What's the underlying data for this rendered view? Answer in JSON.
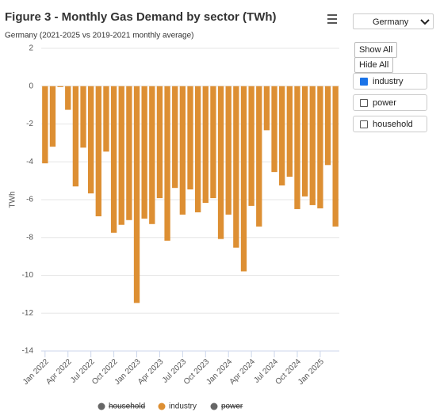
{
  "chart_data": {
    "type": "bar",
    "title": "Figure 3 - Monthly Gas Demand by sector (TWh)",
    "subtitle": "Germany (2021-2025 vs 2019-2021 monthly average)",
    "y_label": "TWh",
    "categories": [
      "Jan 2022",
      null,
      null,
      "Apr 2022",
      null,
      null,
      "Jul 2022",
      null,
      null,
      "Oct 2022",
      null,
      null,
      "Jan 2023",
      null,
      null,
      "Apr 2023",
      null,
      null,
      "Jul 2023",
      null,
      null,
      "Oct 2023",
      null,
      null,
      "Jan 2024",
      null,
      null,
      "Apr 2024",
      null,
      null,
      "Jul 2024",
      null,
      null,
      "Oct 2024",
      null,
      null,
      "Jan 2025",
      null,
      null
    ],
    "series": [
      {
        "name": "industry",
        "color": "#dd8f33",
        "values": [
          -4.08,
          -3.2,
          -0.05,
          -1.25,
          -5.3,
          -3.25,
          -5.67,
          -6.88,
          -3.46,
          -7.75,
          -7.33,
          -7.08,
          -11.46,
          -7.0,
          -7.29,
          -5.92,
          -8.17,
          -5.38,
          -6.79,
          -5.46,
          -6.67,
          -6.17,
          -5.92,
          -8.08,
          -6.79,
          -8.54,
          -9.79,
          -6.33,
          -7.42,
          -2.33,
          -4.54,
          -5.25,
          -4.79,
          -6.5,
          -5.83,
          -6.29,
          -6.46,
          -4.17,
          -7.42
        ]
      }
    ],
    "legend": [
      {
        "name": "household",
        "color": "#666666",
        "hidden": true
      },
      {
        "name": "industry",
        "color": "#dd8f33",
        "hidden": false
      },
      {
        "name": "power",
        "color": "#666666",
        "hidden": true
      }
    ],
    "ylim": [
      -14,
      2
    ],
    "yticks": [
      -14,
      -12,
      -10,
      -8,
      -6,
      -4,
      -2,
      0,
      2
    ],
    "grid": true
  },
  "controls": {
    "country": "Germany",
    "show_all": "Show All",
    "hide_all": "Hide All",
    "checkboxes": [
      {
        "label": "industry",
        "checked": true
      },
      {
        "label": "power",
        "checked": false
      },
      {
        "label": "household",
        "checked": false
      }
    ]
  }
}
